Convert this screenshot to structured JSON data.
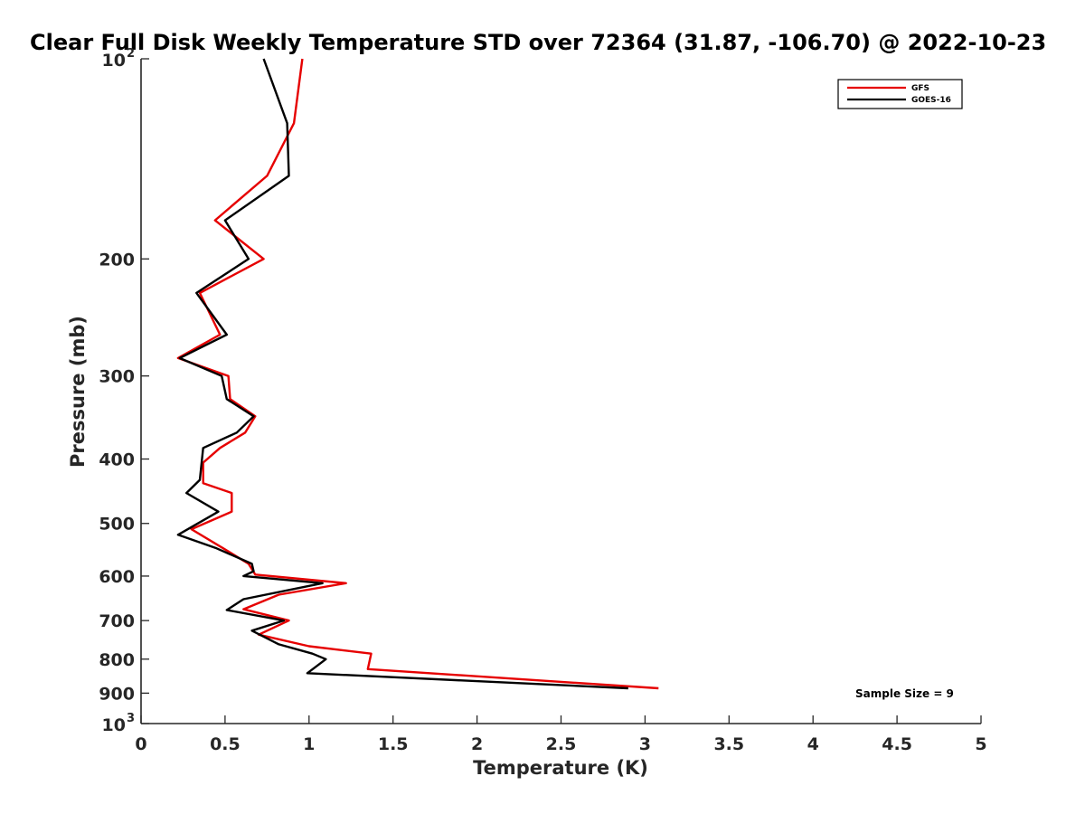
{
  "chart_data": {
    "type": "line",
    "title": "Clear Full Disk Weekly Temperature STD over 72364 (31.87, -106.70) @ 2022-10-23",
    "xlabel": "Temperature (K)",
    "ylabel": "Pressure (mb)",
    "xlim": [
      0,
      5
    ],
    "ylim": [
      100,
      1000
    ],
    "y_scale": "log",
    "y_reversed": true,
    "x_ticks": [
      "0",
      "0.5",
      "1",
      "1.5",
      "2",
      "2.5",
      "3",
      "3.5",
      "4",
      "4.5",
      "5"
    ],
    "x_tick_values": [
      0,
      0.5,
      1,
      1.5,
      2,
      2.5,
      3,
      3.5,
      4,
      4.5,
      5
    ],
    "y_ticks": [
      {
        "value": 100,
        "base": "10",
        "exp": "2"
      },
      {
        "value": 200,
        "label": "200"
      },
      {
        "value": 300,
        "label": "300"
      },
      {
        "value": 400,
        "label": "400"
      },
      {
        "value": 500,
        "label": "500"
      },
      {
        "value": 600,
        "label": "600"
      },
      {
        "value": 700,
        "label": "700"
      },
      {
        "value": 800,
        "label": "800"
      },
      {
        "value": 900,
        "label": "900"
      },
      {
        "value": 1000,
        "base": "10",
        "exp": "3"
      }
    ],
    "legend_position": "top-right",
    "grid": false,
    "annotation": "Sample Size = 9",
    "series": [
      {
        "name": "GFS",
        "color": "#e60000",
        "points": [
          [
            0.96,
            100
          ],
          [
            0.91,
            125
          ],
          [
            0.75,
            150
          ],
          [
            0.44,
            175
          ],
          [
            0.73,
            200
          ],
          [
            0.35,
            225
          ],
          [
            0.47,
            260
          ],
          [
            0.22,
            282
          ],
          [
            0.52,
            300
          ],
          [
            0.53,
            325
          ],
          [
            0.68,
            345
          ],
          [
            0.62,
            365
          ],
          [
            0.47,
            385
          ],
          [
            0.37,
            405
          ],
          [
            0.37,
            435
          ],
          [
            0.54,
            450
          ],
          [
            0.54,
            480
          ],
          [
            0.3,
            510
          ],
          [
            0.49,
            545
          ],
          [
            0.64,
            575
          ],
          [
            0.68,
            597
          ],
          [
            1.22,
            615
          ],
          [
            0.82,
            640
          ],
          [
            0.61,
            673
          ],
          [
            0.88,
            700
          ],
          [
            0.7,
            735
          ],
          [
            1.0,
            765
          ],
          [
            1.37,
            785
          ],
          [
            1.35,
            828
          ],
          [
            3.08,
            885
          ]
        ]
      },
      {
        "name": "GOES-16",
        "color": "#000000",
        "points": [
          [
            0.73,
            100
          ],
          [
            0.87,
            125
          ],
          [
            0.88,
            150
          ],
          [
            0.5,
            175
          ],
          [
            0.64,
            200
          ],
          [
            0.33,
            225
          ],
          [
            0.51,
            260
          ],
          [
            0.23,
            282
          ],
          [
            0.48,
            300
          ],
          [
            0.51,
            325
          ],
          [
            0.67,
            345
          ],
          [
            0.57,
            365
          ],
          [
            0.37,
            385
          ],
          [
            0.35,
            430
          ],
          [
            0.27,
            450
          ],
          [
            0.46,
            480
          ],
          [
            0.22,
            520
          ],
          [
            0.45,
            545
          ],
          [
            0.66,
            575
          ],
          [
            0.67,
            590
          ],
          [
            0.61,
            600
          ],
          [
            1.08,
            615
          ],
          [
            0.61,
            650
          ],
          [
            0.51,
            675
          ],
          [
            0.85,
            700
          ],
          [
            0.66,
            725
          ],
          [
            0.82,
            760
          ],
          [
            1.02,
            785
          ],
          [
            1.1,
            800
          ],
          [
            0.99,
            840
          ],
          [
            2.9,
            885
          ]
        ]
      }
    ]
  }
}
